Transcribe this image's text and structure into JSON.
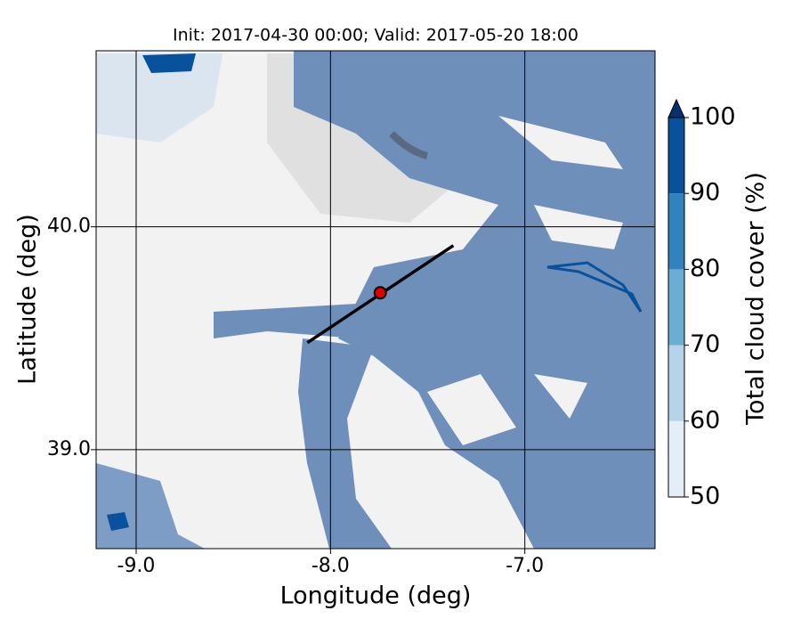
{
  "chart_data": {
    "type": "contour",
    "title": "Init: 2017-04-30 00:00; Valid: 2017-05-20 18:00",
    "x_label": "Longitude (deg)",
    "y_label": "Latitude (deg)",
    "xlim": [
      -9.206,
      -6.33
    ],
    "ylim": [
      38.556,
      40.79
    ],
    "xticks": [
      {
        "value": -9,
        "label": "-9.0"
      },
      {
        "value": -8,
        "label": "-8.0"
      },
      {
        "value": -7,
        "label": "-7.0"
      }
    ],
    "yticks": [
      {
        "value": 39,
        "label": "39.0"
      },
      {
        "value": 40,
        "label": "40.0"
      }
    ],
    "grid": true,
    "colorbar": {
      "label": "Total cloud cover (%)",
      "ticks": [
        50,
        60,
        70,
        80,
        90,
        100
      ],
      "colors": [
        "#e4eef8",
        "#b7d3e9",
        "#6aaed6",
        "#3182bd",
        "#08519c"
      ],
      "extend_color": "#08306b"
    },
    "transect": {
      "x": [
        -8.119,
        -7.368
      ],
      "y": [
        39.48,
        39.916
      ],
      "color": "#000000"
    },
    "point": {
      "x": [
        -7.744
      ],
      "y": [
        39.704
      ],
      "color": "#e00000"
    }
  }
}
